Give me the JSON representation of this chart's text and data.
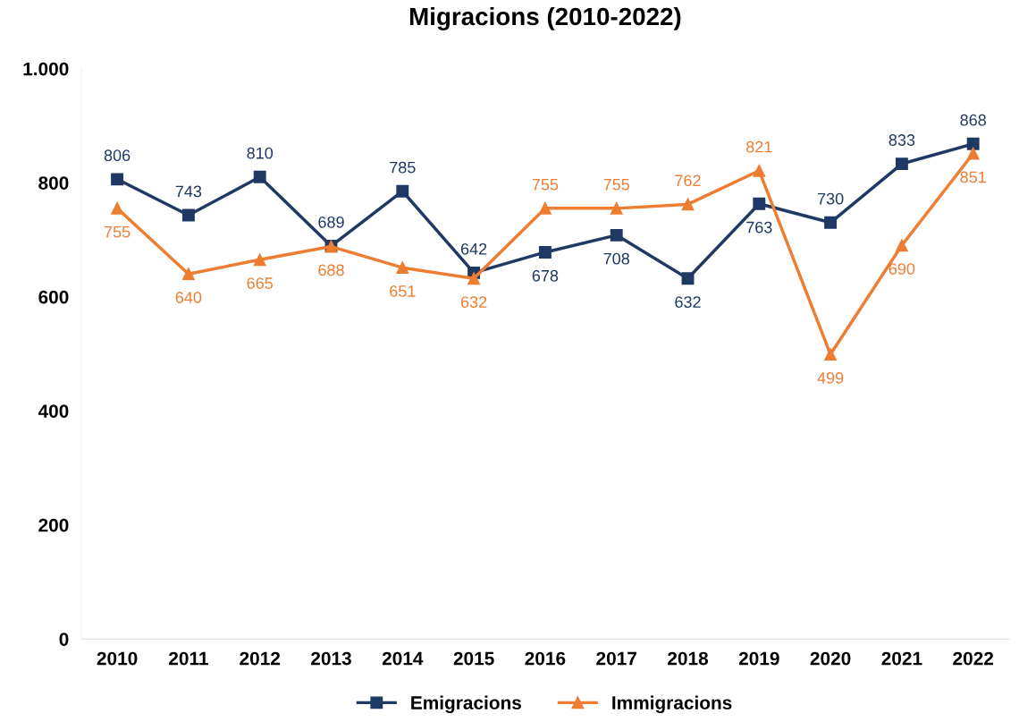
{
  "chart_data": {
    "type": "line",
    "title": "Migracions (2010-2022)",
    "categories": [
      "2010",
      "2011",
      "2012",
      "2013",
      "2014",
      "2015",
      "2016",
      "2017",
      "2018",
      "2019",
      "2020",
      "2021",
      "2022"
    ],
    "series": [
      {
        "name": "Emigracions",
        "color": "#1f3864",
        "marker": "square",
        "values": [
          806,
          743,
          810,
          689,
          785,
          642,
          678,
          708,
          632,
          763,
          730,
          833,
          868
        ]
      },
      {
        "name": "Immigracions",
        "color": "#ed7d31",
        "marker": "triangle",
        "values": [
          755,
          640,
          665,
          688,
          651,
          632,
          755,
          755,
          762,
          821,
          499,
          690,
          851
        ]
      }
    ],
    "ylim": [
      0,
      1000
    ],
    "yticks": [
      0,
      200,
      400,
      600,
      800,
      {
        "value": 1000,
        "label": "1.000"
      }
    ],
    "grid": false,
    "legend": "bottom",
    "data_labels": true,
    "line_style": "solid"
  }
}
